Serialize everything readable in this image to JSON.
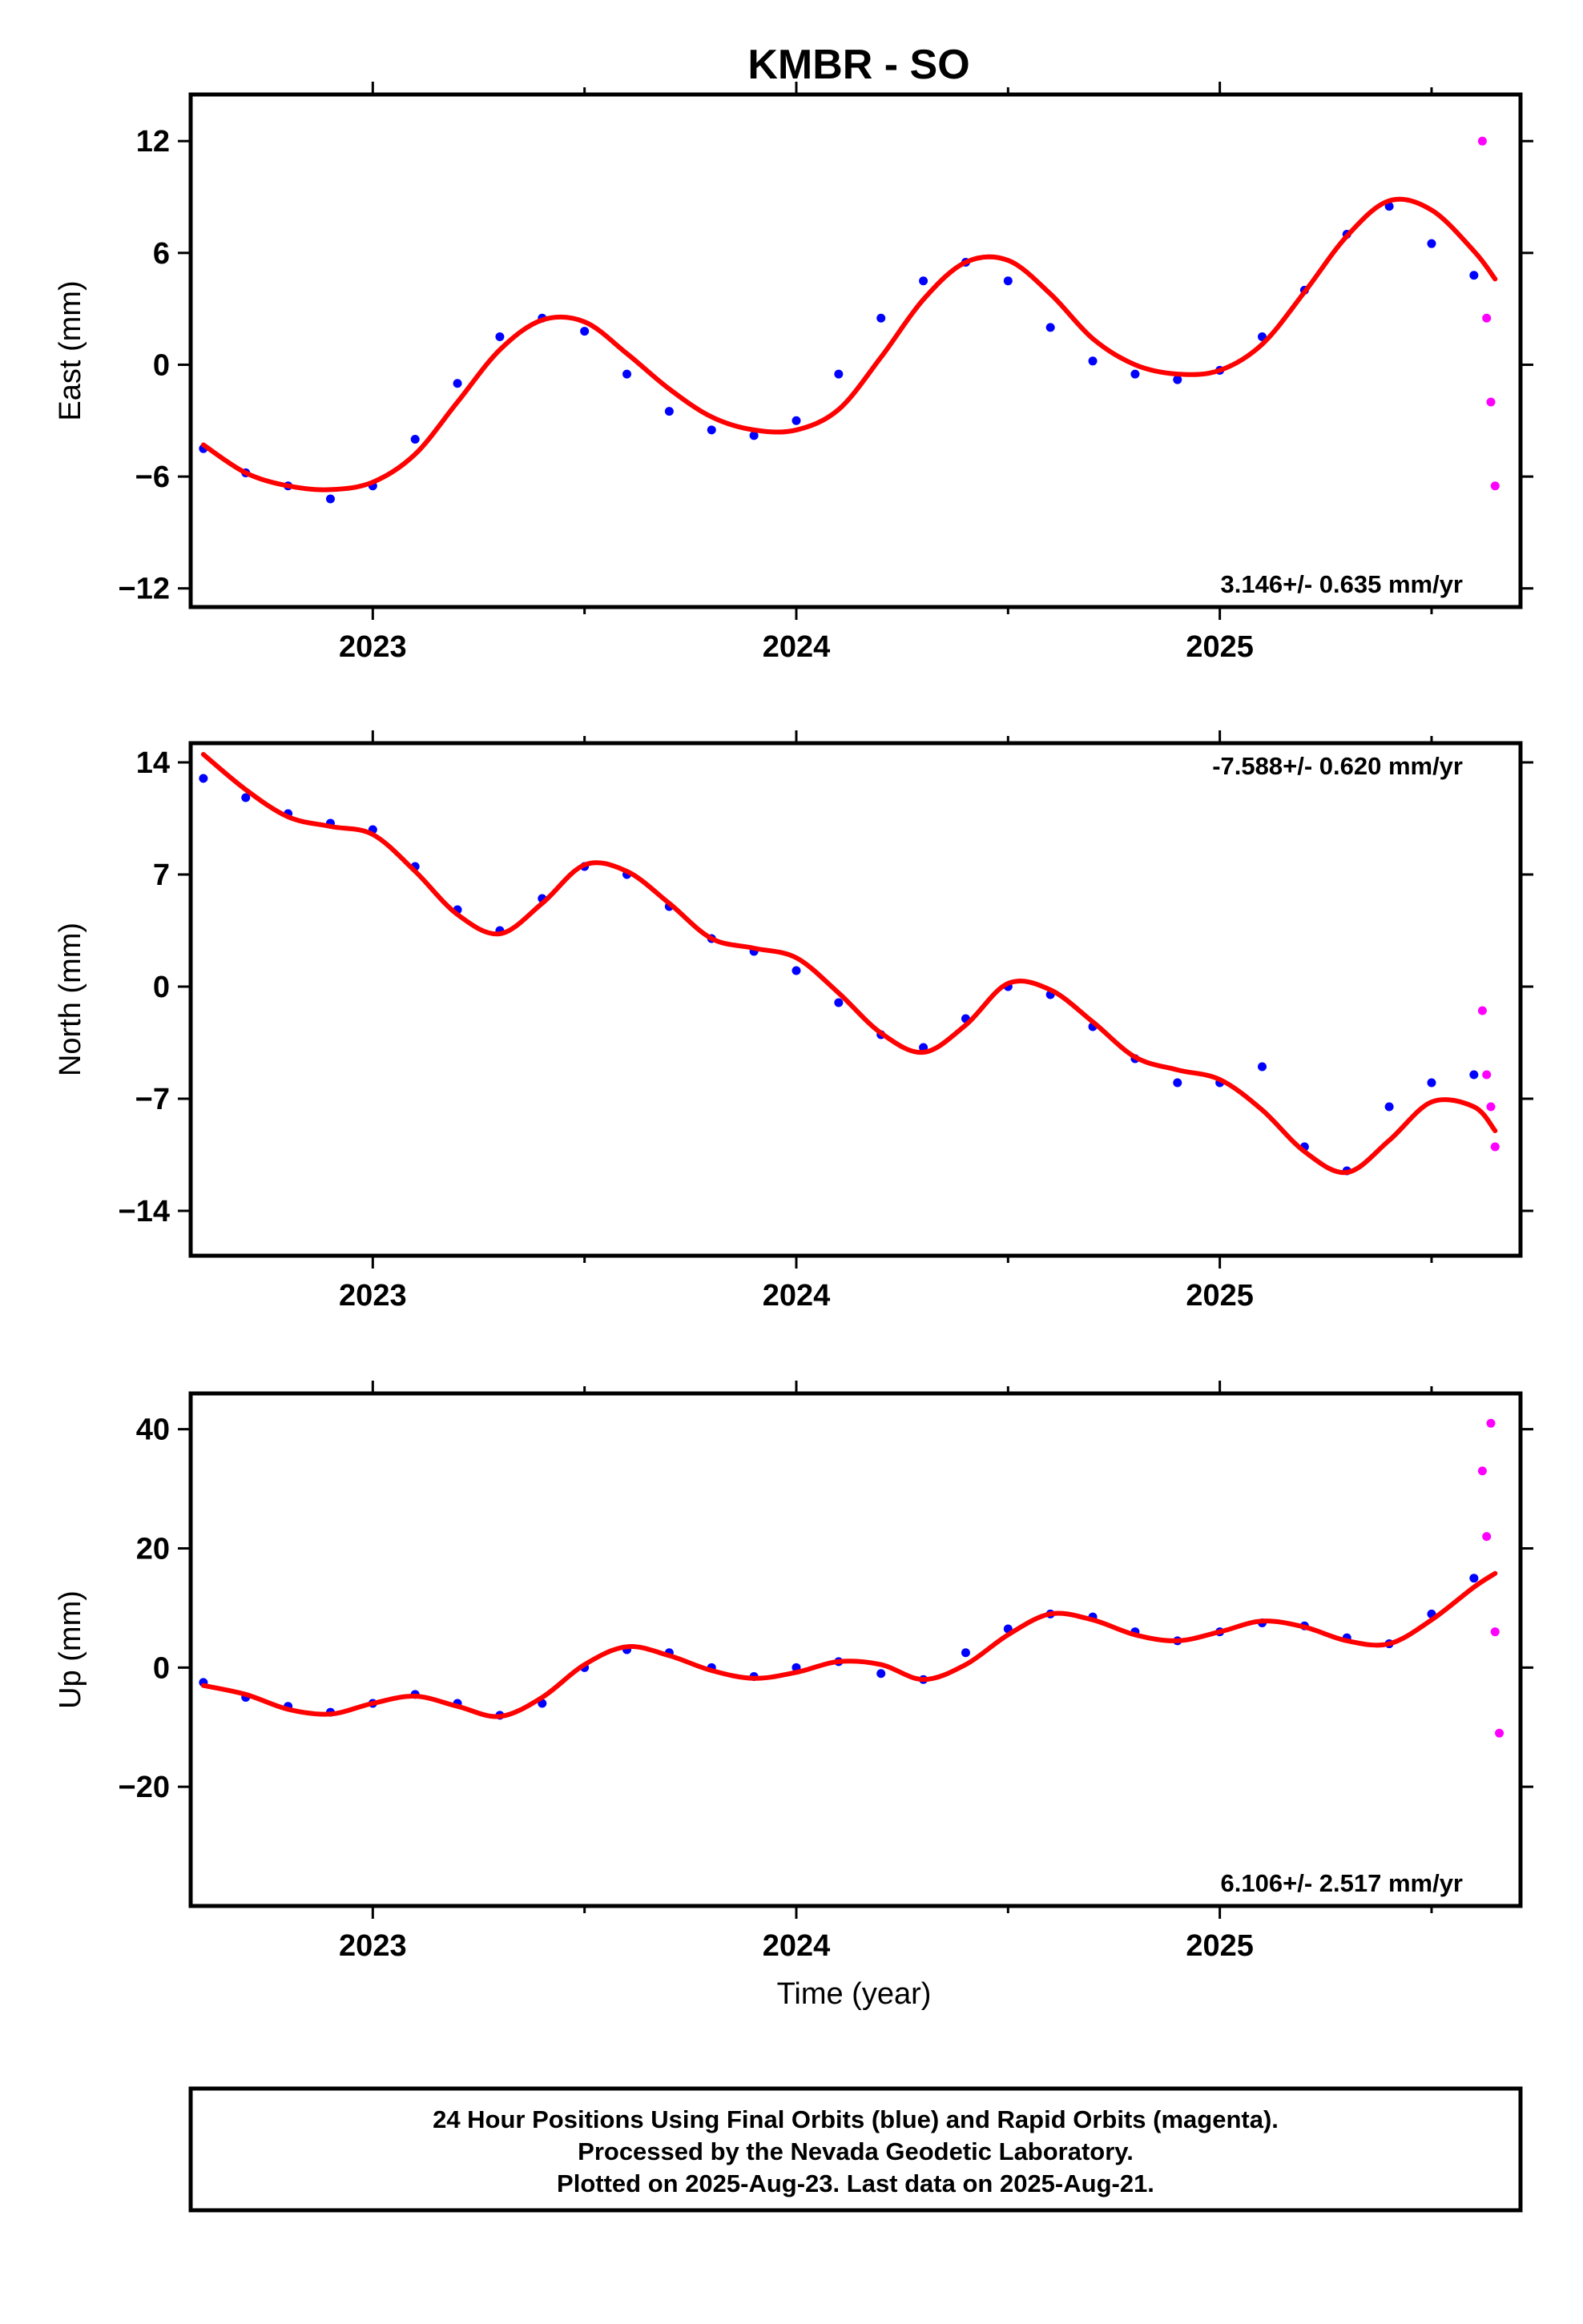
{
  "title": "KMBR - SO",
  "xlabel": "Time (year)",
  "footer": {
    "line1": "24 Hour Positions Using Final Orbits (blue) and Rapid Orbits (magenta).",
    "line2": "Processed by the Nevada Geodetic Laboratory.",
    "line3": "Plotted on 2025-Aug-23. Last data on 2025-Aug-21."
  },
  "colors": {
    "final": "#0000ff",
    "rapid": "#ff00ff",
    "fit": "#ff0000",
    "axis": "#000000"
  },
  "chart_data": [
    {
      "type": "scatter",
      "ylabel": "East (mm)",
      "rate_label": "3.146+/- 0.635 mm/yr",
      "xlim": [
        2022.57,
        2025.71
      ],
      "ylim": [
        -13.0,
        14.5
      ],
      "xticks": [
        2023,
        2024,
        2025
      ],
      "yticks": [
        -12,
        -6,
        0,
        6,
        12
      ],
      "series": [
        {
          "id": "final",
          "x": [
            2022.6,
            2022.7,
            2022.8,
            2022.9,
            2023.0,
            2023.1,
            2023.2,
            2023.3,
            2023.4,
            2023.5,
            2023.6,
            2023.7,
            2023.8,
            2023.9,
            2024.0,
            2024.1,
            2024.2,
            2024.3,
            2024.4,
            2024.5,
            2024.6,
            2024.7,
            2024.8,
            2024.9,
            2025.0,
            2025.1,
            2025.2,
            2025.3,
            2025.4,
            2025.5,
            2025.6
          ],
          "y": [
            -4.5,
            -5.8,
            -6.5,
            -7.2,
            -6.5,
            -4.0,
            -1.0,
            1.5,
            2.5,
            1.8,
            -0.5,
            -2.5,
            -3.5,
            -3.8,
            -3.0,
            -0.5,
            2.5,
            4.5,
            5.5,
            4.5,
            2.0,
            0.2,
            -0.5,
            -0.8,
            -0.3,
            1.5,
            4.0,
            7.0,
            8.5,
            6.5,
            4.8
          ]
        },
        {
          "id": "rapid",
          "x": [
            2025.62,
            2025.63,
            2025.64,
            2025.65
          ],
          "y": [
            12.0,
            2.5,
            -2.0,
            -6.5
          ]
        }
      ],
      "fit": {
        "x": [
          2022.6,
          2022.7,
          2022.8,
          2022.9,
          2023.0,
          2023.1,
          2023.2,
          2023.3,
          2023.4,
          2023.5,
          2023.6,
          2023.7,
          2023.8,
          2023.9,
          2024.0,
          2024.1,
          2024.2,
          2024.3,
          2024.4,
          2024.5,
          2024.6,
          2024.7,
          2024.8,
          2024.9,
          2025.0,
          2025.1,
          2025.2,
          2025.3,
          2025.4,
          2025.5,
          2025.6,
          2025.65
        ],
        "y": [
          -4.3,
          -5.8,
          -6.5,
          -6.7,
          -6.3,
          -4.8,
          -2.0,
          0.8,
          2.4,
          2.3,
          0.6,
          -1.3,
          -2.8,
          -3.5,
          -3.5,
          -2.4,
          0.4,
          3.5,
          5.5,
          5.6,
          3.8,
          1.4,
          0.0,
          -0.5,
          -0.3,
          1.1,
          3.9,
          6.9,
          8.8,
          8.3,
          6.1,
          4.6
        ]
      }
    },
    {
      "type": "scatter",
      "ylabel": "North (mm)",
      "rate_label": "-7.588+/- 0.620 mm/yr",
      "xlim": [
        2022.57,
        2025.71
      ],
      "ylim": [
        -16.8,
        15.2
      ],
      "xticks": [
        2023,
        2024,
        2025
      ],
      "yticks": [
        -14,
        -7,
        0,
        7,
        14
      ],
      "series": [
        {
          "id": "final",
          "x": [
            2022.6,
            2022.7,
            2022.8,
            2022.9,
            2023.0,
            2023.1,
            2023.2,
            2023.3,
            2023.4,
            2023.5,
            2023.6,
            2023.7,
            2023.8,
            2023.9,
            2024.0,
            2024.1,
            2024.2,
            2024.3,
            2024.4,
            2024.5,
            2024.6,
            2024.7,
            2024.8,
            2024.9,
            2025.0,
            2025.1,
            2025.2,
            2025.3,
            2025.4,
            2025.5,
            2025.6
          ],
          "y": [
            13.0,
            11.8,
            10.8,
            10.2,
            9.8,
            7.5,
            4.8,
            3.5,
            5.5,
            7.5,
            7.0,
            5.0,
            3.0,
            2.2,
            1.0,
            -1.0,
            -3.0,
            -3.8,
            -2.0,
            0.0,
            -0.5,
            -2.5,
            -4.5,
            -6.0,
            -6.0,
            -5.0,
            -10.0,
            -11.5,
            -7.5,
            -6.0,
            -5.5
          ]
        },
        {
          "id": "rapid",
          "x": [
            2025.62,
            2025.63,
            2025.64,
            2025.65
          ],
          "y": [
            -1.5,
            -5.5,
            -7.5,
            -10.0
          ]
        }
      ],
      "fit": {
        "x": [
          2022.6,
          2022.7,
          2022.8,
          2022.9,
          2023.0,
          2023.1,
          2023.2,
          2023.3,
          2023.4,
          2023.5,
          2023.6,
          2023.7,
          2023.8,
          2023.9,
          2024.0,
          2024.1,
          2024.2,
          2024.3,
          2024.4,
          2024.5,
          2024.6,
          2024.7,
          2024.8,
          2024.9,
          2025.0,
          2025.1,
          2025.2,
          2025.3,
          2025.4,
          2025.5,
          2025.6,
          2025.65
        ],
        "y": [
          14.5,
          12.3,
          10.6,
          10.0,
          9.5,
          7.2,
          4.5,
          3.3,
          5.2,
          7.6,
          7.2,
          5.2,
          3.0,
          2.4,
          1.8,
          -0.4,
          -2.9,
          -4.1,
          -2.4,
          0.2,
          -0.2,
          -2.2,
          -4.4,
          -5.2,
          -5.8,
          -7.7,
          -10.3,
          -11.6,
          -9.6,
          -7.2,
          -7.5,
          -9.0
        ]
      }
    },
    {
      "type": "scatter",
      "ylabel": "Up (mm)",
      "rate_label": "6.106+/- 2.517 mm/yr",
      "xlim": [
        2022.57,
        2025.71
      ],
      "ylim": [
        -40.0,
        46.0
      ],
      "xticks": [
        2023,
        2024,
        2025
      ],
      "yticks": [
        -20,
        0,
        20,
        40
      ],
      "series": [
        {
          "id": "final",
          "x": [
            2022.6,
            2022.7,
            2022.8,
            2022.9,
            2023.0,
            2023.1,
            2023.2,
            2023.3,
            2023.4,
            2023.5,
            2023.6,
            2023.7,
            2023.8,
            2023.9,
            2024.0,
            2024.1,
            2024.2,
            2024.3,
            2024.4,
            2024.5,
            2024.6,
            2024.7,
            2024.8,
            2024.9,
            2025.0,
            2025.1,
            2025.2,
            2025.3,
            2025.4,
            2025.5,
            2025.6
          ],
          "y": [
            -2.5,
            -5.0,
            -6.5,
            -7.5,
            -6.0,
            -4.5,
            -6.0,
            -8.0,
            -6.0,
            0.0,
            3.0,
            2.5,
            0.0,
            -1.5,
            0.0,
            1.0,
            -1.0,
            -2.0,
            2.5,
            6.5,
            9.0,
            8.5,
            6.0,
            4.5,
            6.0,
            7.5,
            7.0,
            5.0,
            4.0,
            9.0,
            15.0
          ]
        },
        {
          "id": "rapid",
          "x": [
            2025.62,
            2025.63,
            2025.64,
            2025.65,
            2025.66
          ],
          "y": [
            33.0,
            22.0,
            41.0,
            6.0,
            -11.0
          ]
        }
      ],
      "fit": {
        "x": [
          2022.6,
          2022.7,
          2022.8,
          2022.9,
          2023.0,
          2023.1,
          2023.2,
          2023.3,
          2023.4,
          2023.5,
          2023.6,
          2023.7,
          2023.8,
          2023.9,
          2024.0,
          2024.1,
          2024.2,
          2024.3,
          2024.4,
          2024.5,
          2024.6,
          2024.7,
          2024.8,
          2024.9,
          2025.0,
          2025.1,
          2025.2,
          2025.3,
          2025.4,
          2025.5,
          2025.6,
          2025.65
        ],
        "y": [
          -3.0,
          -4.5,
          -7.0,
          -7.8,
          -6.0,
          -4.8,
          -6.5,
          -8.2,
          -5.0,
          0.5,
          3.5,
          2.0,
          -0.5,
          -1.8,
          -0.8,
          1.0,
          0.5,
          -2.0,
          0.5,
          5.5,
          9.0,
          8.0,
          5.5,
          4.5,
          6.0,
          7.8,
          6.8,
          4.5,
          4.0,
          8.0,
          13.5,
          15.8
        ]
      }
    }
  ]
}
